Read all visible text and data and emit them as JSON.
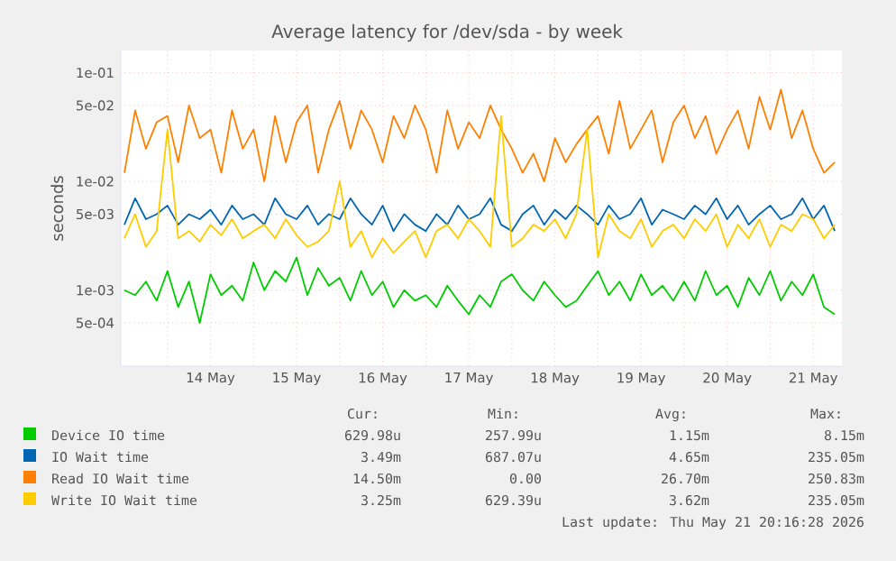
{
  "chart_data": {
    "type": "line",
    "title": "Average latency for /dev/sda - by week",
    "ylabel": "seconds",
    "log": "y",
    "grid": true,
    "legend": "bottom",
    "xlim": [
      "2026-05-13T11:00",
      "2026-05-21T20:00"
    ],
    "xticks": [
      {
        "value": "2026-05-14T00:00",
        "label": null
      },
      {
        "value": "2026-05-15T00:00",
        "label": null
      },
      {
        "value": "2026-05-16T00:00",
        "label": null
      },
      {
        "value": "2026-05-17T00:00",
        "label": null
      },
      {
        "value": "2026-05-18T00:00",
        "label": null
      },
      {
        "value": "2026-05-19T00:00",
        "label": null
      },
      {
        "value": "2026-05-20T00:00",
        "label": null
      },
      {
        "value": "2026-05-21T00:00",
        "label": null
      },
      {
        "value": "2026-05-14T12:00",
        "label": "14 May"
      },
      {
        "value": "2026-05-15T12:00",
        "label": "15 May"
      },
      {
        "value": "2026-05-16T12:00",
        "label": "16 May"
      },
      {
        "value": "2026-05-17T12:00",
        "label": "17 May"
      },
      {
        "value": "2026-05-18T12:00",
        "label": "18 May"
      },
      {
        "value": "2026-05-19T12:00",
        "label": "19 May"
      },
      {
        "value": "2026-05-20T12:00",
        "label": "20 May"
      },
      {
        "value": "2026-05-21T12:00",
        "label": "21 May"
      }
    ],
    "ylim": [
      0.0002,
      0.16
    ],
    "yticks": [
      {
        "value": 0.0005,
        "label": "5e-04"
      },
      {
        "value": 0.001,
        "label": "1e-03"
      },
      {
        "value": 0.005,
        "label": "5e-03"
      },
      {
        "value": 0.01,
        "label": "1e-02"
      },
      {
        "value": 0.05,
        "label": "5e-02"
      },
      {
        "value": 0.1,
        "label": "1e-01"
      }
    ],
    "x": [
      "2026-05-13T12:00",
      "2026-05-13T15:00",
      "2026-05-13T18:00",
      "2026-05-13T21:00",
      "2026-05-14T00:00",
      "2026-05-14T03:00",
      "2026-05-14T06:00",
      "2026-05-14T09:00",
      "2026-05-14T12:00",
      "2026-05-14T15:00",
      "2026-05-14T18:00",
      "2026-05-14T21:00",
      "2026-05-15T00:00",
      "2026-05-15T03:00",
      "2026-05-15T06:00",
      "2026-05-15T09:00",
      "2026-05-15T12:00",
      "2026-05-15T15:00",
      "2026-05-15T18:00",
      "2026-05-15T21:00",
      "2026-05-16T00:00",
      "2026-05-16T03:00",
      "2026-05-16T06:00",
      "2026-05-16T09:00",
      "2026-05-16T12:00",
      "2026-05-16T15:00",
      "2026-05-16T18:00",
      "2026-05-16T21:00",
      "2026-05-17T00:00",
      "2026-05-17T03:00",
      "2026-05-17T06:00",
      "2026-05-17T09:00",
      "2026-05-17T12:00",
      "2026-05-17T15:00",
      "2026-05-17T18:00",
      "2026-05-17T21:00",
      "2026-05-18T00:00",
      "2026-05-18T03:00",
      "2026-05-18T06:00",
      "2026-05-18T09:00",
      "2026-05-18T12:00",
      "2026-05-18T15:00",
      "2026-05-18T18:00",
      "2026-05-18T21:00",
      "2026-05-19T00:00",
      "2026-05-19T03:00",
      "2026-05-19T06:00",
      "2026-05-19T09:00",
      "2026-05-19T12:00",
      "2026-05-19T15:00",
      "2026-05-19T18:00",
      "2026-05-19T21:00",
      "2026-05-20T00:00",
      "2026-05-20T03:00",
      "2026-05-20T06:00",
      "2026-05-20T09:00",
      "2026-05-20T12:00",
      "2026-05-20T15:00",
      "2026-05-20T18:00",
      "2026-05-20T21:00",
      "2026-05-21T00:00",
      "2026-05-21T03:00",
      "2026-05-21T06:00",
      "2026-05-21T09:00",
      "2026-05-21T12:00",
      "2026-05-21T15:00",
      "2026-05-21T18:00"
    ],
    "series": [
      {
        "name": "Device IO time",
        "color": "#00cc00",
        "values": [
          0.001,
          0.0009,
          0.0012,
          0.0008,
          0.0015,
          0.0007,
          0.0012,
          0.0005,
          0.0014,
          0.0009,
          0.0011,
          0.0008,
          0.0018,
          0.001,
          0.0015,
          0.0012,
          0.002,
          0.0009,
          0.0016,
          0.0011,
          0.0013,
          0.0008,
          0.0015,
          0.0009,
          0.0012,
          0.0007,
          0.001,
          0.0008,
          0.0009,
          0.0007,
          0.0011,
          0.0008,
          0.0006,
          0.0009,
          0.0007,
          0.0012,
          0.0014,
          0.001,
          0.0008,
          0.0012,
          0.0009,
          0.0007,
          0.0008,
          0.0011,
          0.0015,
          0.0009,
          0.0012,
          0.0008,
          0.0014,
          0.0009,
          0.0011,
          0.0008,
          0.0012,
          0.0008,
          0.0015,
          0.0009,
          0.0011,
          0.0007,
          0.0013,
          0.0009,
          0.0015,
          0.0008,
          0.0012,
          0.0009,
          0.0014,
          0.0007,
          0.0006
        ]
      },
      {
        "name": "IO Wait time",
        "color": "#0066b3",
        "values": [
          0.004,
          0.007,
          0.0045,
          0.005,
          0.006,
          0.004,
          0.005,
          0.0045,
          0.0055,
          0.004,
          0.006,
          0.0045,
          0.005,
          0.004,
          0.007,
          0.005,
          0.0045,
          0.006,
          0.004,
          0.005,
          0.0045,
          0.007,
          0.005,
          0.004,
          0.006,
          0.0035,
          0.005,
          0.004,
          0.0035,
          0.005,
          0.004,
          0.006,
          0.0045,
          0.005,
          0.007,
          0.004,
          0.0035,
          0.005,
          0.006,
          0.004,
          0.0055,
          0.0045,
          0.006,
          0.005,
          0.004,
          0.006,
          0.0045,
          0.005,
          0.007,
          0.004,
          0.0055,
          0.005,
          0.0045,
          0.006,
          0.005,
          0.007,
          0.0045,
          0.006,
          0.004,
          0.005,
          0.006,
          0.0045,
          0.005,
          0.007,
          0.0045,
          0.006,
          0.0035
        ]
      },
      {
        "name": "Read IO Wait time",
        "color": "#ff8000",
        "values": [
          0.012,
          0.045,
          0.02,
          0.035,
          0.04,
          0.015,
          0.05,
          0.025,
          0.03,
          0.012,
          0.045,
          0.02,
          0.03,
          0.01,
          0.04,
          0.015,
          0.035,
          0.05,
          0.012,
          0.03,
          0.055,
          0.02,
          0.045,
          0.03,
          0.015,
          0.04,
          0.025,
          0.05,
          0.03,
          0.012,
          0.045,
          0.02,
          0.035,
          0.025,
          0.05,
          0.03,
          0.02,
          0.012,
          0.018,
          0.01,
          0.025,
          0.015,
          0.022,
          0.03,
          0.04,
          0.018,
          0.055,
          0.02,
          0.03,
          0.045,
          0.015,
          0.035,
          0.05,
          0.025,
          0.04,
          0.018,
          0.03,
          0.045,
          0.02,
          0.06,
          0.03,
          0.07,
          0.025,
          0.045,
          0.02,
          0.012,
          0.015
        ]
      },
      {
        "name": "Write IO Wait time",
        "color": "#ffcc00",
        "values": [
          0.003,
          0.005,
          0.0025,
          0.0035,
          0.03,
          0.003,
          0.0035,
          0.0028,
          0.004,
          0.0032,
          0.0045,
          0.003,
          0.0035,
          0.004,
          0.003,
          0.0045,
          0.0032,
          0.0025,
          0.0028,
          0.0035,
          0.01,
          0.0025,
          0.0035,
          0.002,
          0.003,
          0.0022,
          0.0028,
          0.0035,
          0.002,
          0.0035,
          0.004,
          0.003,
          0.0045,
          0.0035,
          0.0025,
          0.04,
          0.0025,
          0.003,
          0.004,
          0.0035,
          0.0045,
          0.003,
          0.005,
          0.03,
          0.002,
          0.005,
          0.0035,
          0.003,
          0.0045,
          0.0025,
          0.0035,
          0.004,
          0.003,
          0.0045,
          0.0035,
          0.005,
          0.0025,
          0.004,
          0.003,
          0.0045,
          0.0025,
          0.004,
          0.0035,
          0.005,
          0.0045,
          0.003,
          0.004
        ]
      }
    ],
    "annotations": [
      "Cur:",
      "Min:",
      "Avg:",
      "Max:",
      "629.98u",
      "257.99u",
      "1.15m",
      "8.15m",
      "3.49m",
      "687.07u",
      "4.65m",
      "235.05m",
      "14.50m",
      "0.00",
      "26.70m",
      "250.83m",
      "3.25m",
      "629.39u",
      "3.62m",
      "235.05m",
      "Last update: Thu May 21 20:16:28 2026"
    ]
  }
}
